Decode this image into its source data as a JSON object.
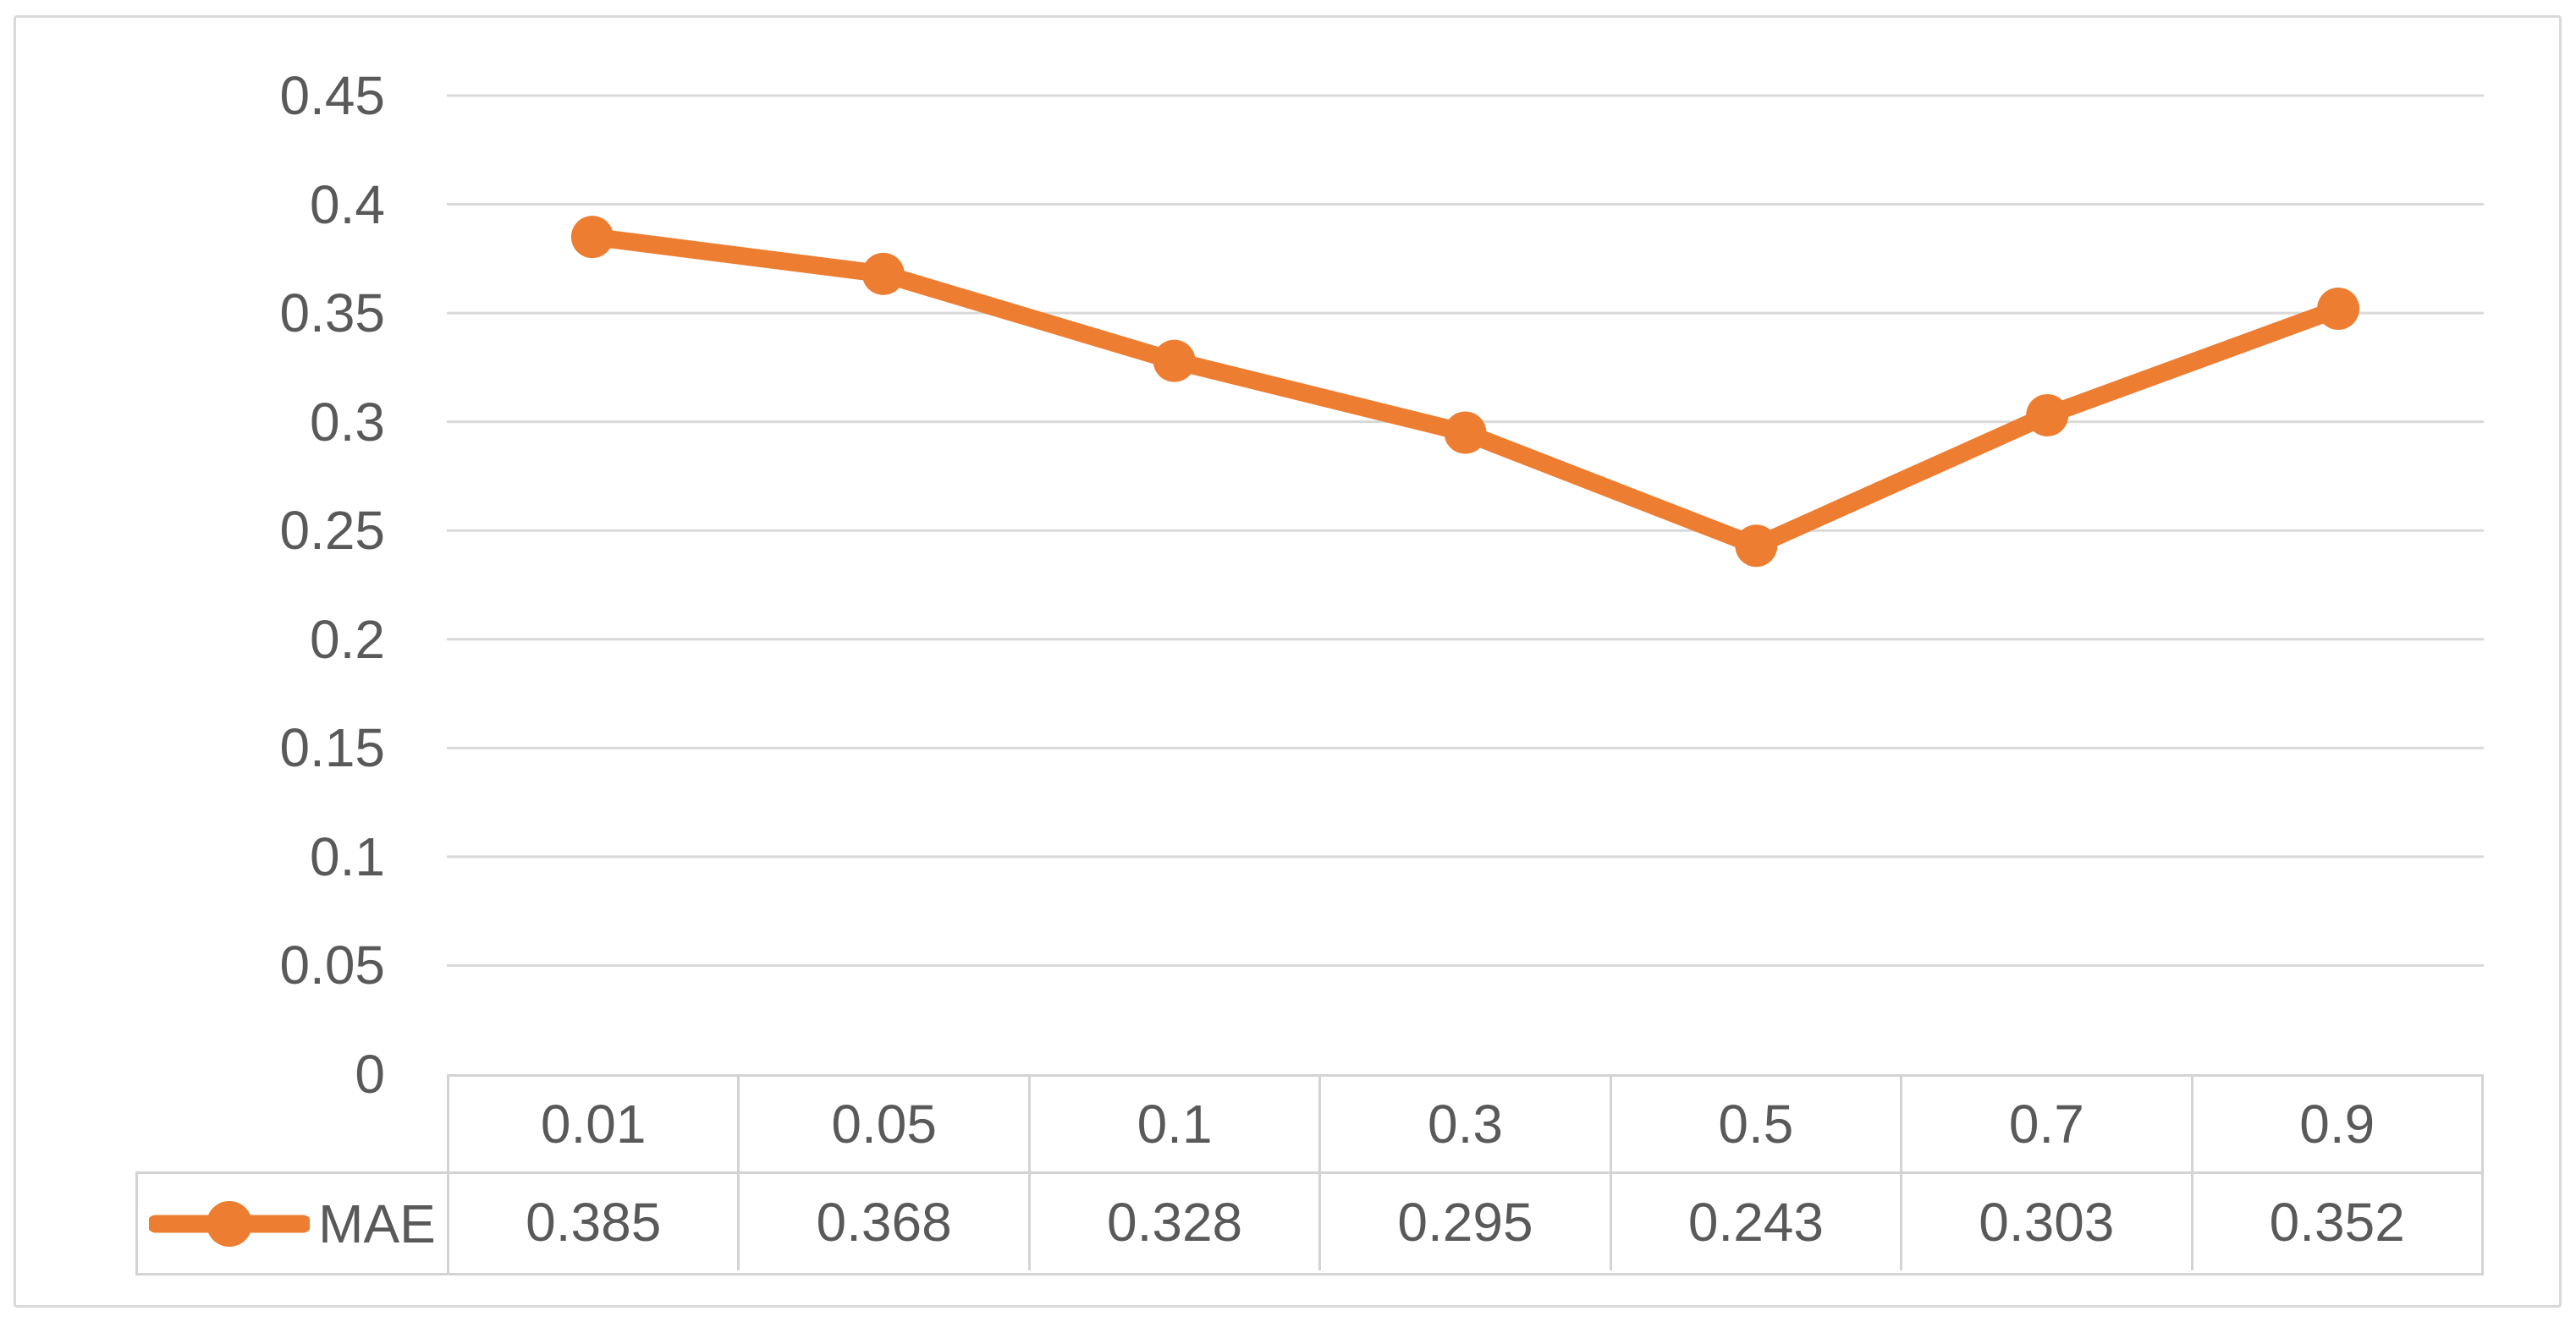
{
  "chart_data": {
    "type": "line",
    "categories": [
      "0.01",
      "0.05",
      "0.1",
      "0.3",
      "0.5",
      "0.7",
      "0.9"
    ],
    "series": [
      {
        "name": "MAE",
        "values": [
          0.385,
          0.368,
          0.328,
          0.295,
          0.243,
          0.303,
          0.352
        ]
      }
    ],
    "y_ticks": [
      "0.45",
      "0.4",
      "0.35",
      "0.3",
      "0.25",
      "0.2",
      "0.15",
      "0.1",
      "0.05",
      "0"
    ],
    "ylim": [
      0,
      0.45
    ],
    "grid": true,
    "data_table_shown": true,
    "legend_position": "data-table-left",
    "colors": {
      "series": "#ED7D31",
      "grid": "#D9D9D9",
      "table_border": "#D3D3D3",
      "frame_border": "#D9D9D9",
      "text": "#595959",
      "background": "#FFFFFF"
    }
  }
}
